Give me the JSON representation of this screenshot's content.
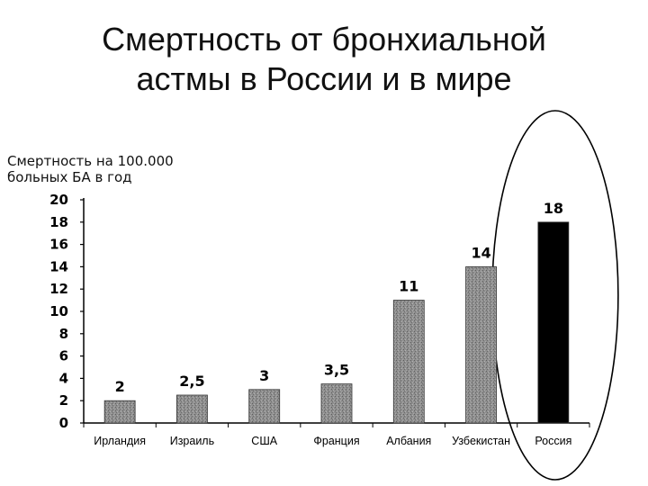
{
  "slide": {
    "title_lines": [
      "Смертность от бронхиальной",
      "астмы в России и в мире"
    ]
  },
  "chart_data": {
    "type": "bar",
    "ylabel_lines": [
      "Смертность на 100.000",
      "больных БА в год"
    ],
    "categories": [
      "Ирландия",
      "Израиль",
      "США",
      "Франция",
      "Албания",
      "Узбекистан",
      "Россия"
    ],
    "values": [
      2,
      2.5,
      3,
      3.5,
      11,
      14,
      18
    ],
    "value_labels": [
      "2",
      "2,5",
      "3",
      "3,5",
      "11",
      "14",
      "18"
    ],
    "yticks": [
      "0",
      "2",
      "4",
      "6",
      "8",
      "10",
      "12",
      "14",
      "16",
      "18",
      "20"
    ],
    "ylim": [
      0,
      20
    ],
    "grid": false,
    "colors": {
      "bar": "#8a8a8a",
      "highlight_bar": "#000000",
      "highlight_ellipse": "#000000"
    },
    "highlight_category": "Россия"
  }
}
